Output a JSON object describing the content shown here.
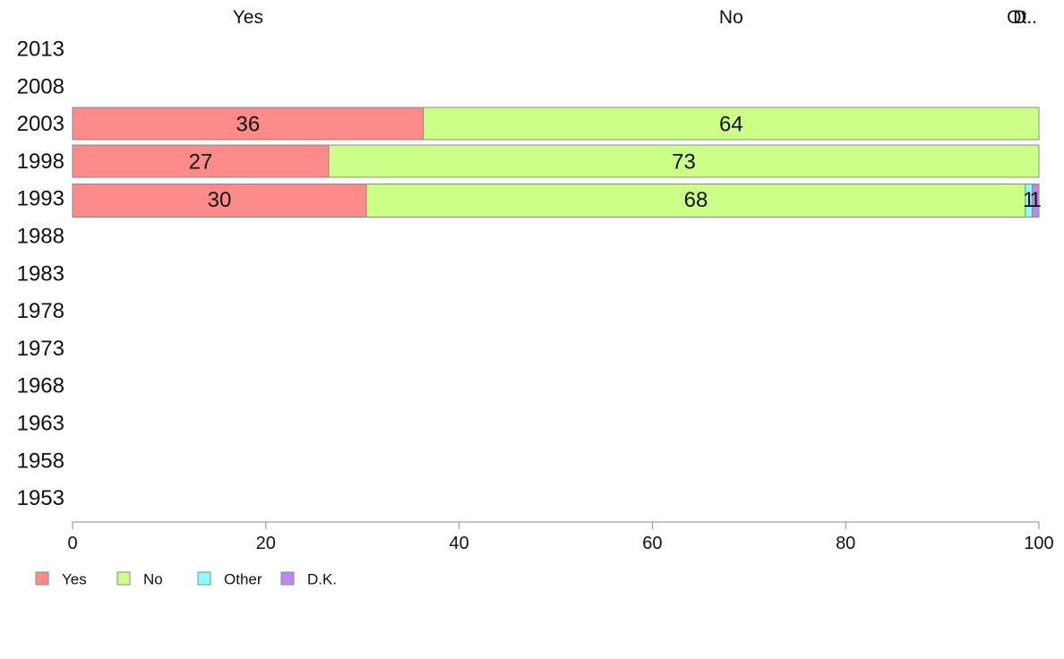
{
  "chart_data": {
    "type": "bar",
    "orientation": "horizontal",
    "stacked": true,
    "categories": [
      "2013",
      "2008",
      "2003",
      "1998",
      "1993",
      "1988",
      "1983",
      "1978",
      "1973",
      "1968",
      "1963",
      "1958",
      "1953"
    ],
    "column_headers": [
      "Yes",
      "No",
      "Ot..",
      "D.."
    ],
    "series": [
      {
        "name": "Yes",
        "color": "#ff8a8a",
        "values": [
          null,
          null,
          36.3,
          26.5,
          30.4,
          null,
          null,
          null,
          null,
          null,
          null,
          null,
          null
        ],
        "labels": [
          "",
          "",
          "36",
          "27",
          "30",
          "",
          "",
          "",
          "",
          "",
          "",
          "",
          ""
        ]
      },
      {
        "name": "No",
        "color": "#ccff88",
        "values": [
          null,
          null,
          63.7,
          73.5,
          68.2,
          null,
          null,
          null,
          null,
          null,
          null,
          null,
          null
        ],
        "labels": [
          "",
          "",
          "64",
          "73",
          "68",
          "",
          "",
          "",
          "",
          "",
          "",
          "",
          ""
        ]
      },
      {
        "name": "Other",
        "color": "#88ffff",
        "values": [
          null,
          null,
          0,
          0,
          0.7,
          null,
          null,
          null,
          null,
          null,
          null,
          null,
          null
        ],
        "labels": [
          "",
          "",
          "",
          "",
          "1",
          "",
          "",
          "",
          "",
          "",
          "",
          "",
          ""
        ]
      },
      {
        "name": "D.K.",
        "color": "#bb88ee",
        "values": [
          null,
          null,
          0,
          0,
          0.7,
          null,
          null,
          null,
          null,
          null,
          null,
          null,
          null
        ],
        "labels": [
          "",
          "",
          "",
          "",
          "1",
          "",
          "",
          "",
          "",
          "",
          "",
          "",
          ""
        ]
      }
    ],
    "xlim": [
      0,
      100
    ],
    "xticks": [
      0,
      20,
      40,
      60,
      80,
      100
    ],
    "xlabel": "",
    "ylabel": "",
    "title": "",
    "grid": false,
    "legend": "bottom-left"
  }
}
